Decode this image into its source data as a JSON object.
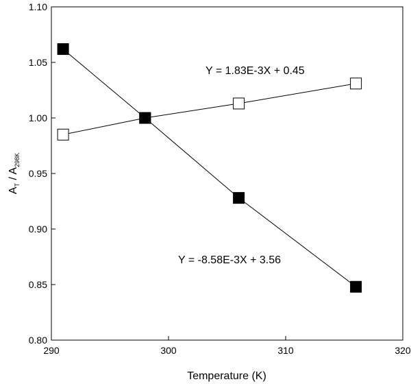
{
  "chart_data": {
    "type": "scatter",
    "title": "",
    "xlabel": "Temperature (K)",
    "ylabel": {
      "main": "A",
      "main_sub": "T",
      "sep": " / A",
      "ref_sub": "298K"
    },
    "xlim": [
      290,
      320
    ],
    "ylim": [
      0.8,
      1.1
    ],
    "xticks": [
      290,
      300,
      310,
      320
    ],
    "yticks": [
      0.8,
      0.85,
      0.9,
      0.95,
      1.0,
      1.05,
      1.1
    ],
    "xtick_labels": [
      "290",
      "300",
      "310",
      "320"
    ],
    "ytick_labels": [
      "0.80",
      "0.85",
      "0.90",
      "0.95",
      "1.00",
      "1.05",
      "1.10"
    ],
    "grid": false,
    "series": [
      {
        "marker": "open-square",
        "color": "#000000",
        "x": [
          291,
          298,
          306,
          316
        ],
        "y": [
          0.985,
          1.0,
          1.013,
          1.031
        ],
        "fit_label": "Y = 1.83E-3X + 0.45"
      },
      {
        "marker": "filled-square",
        "color": "#000000",
        "x": [
          291,
          298,
          306,
          316
        ],
        "y": [
          1.062,
          1.0,
          0.928,
          0.848
        ],
        "fit_label": "Y = -8.58E-3X + 3.56"
      }
    ]
  }
}
